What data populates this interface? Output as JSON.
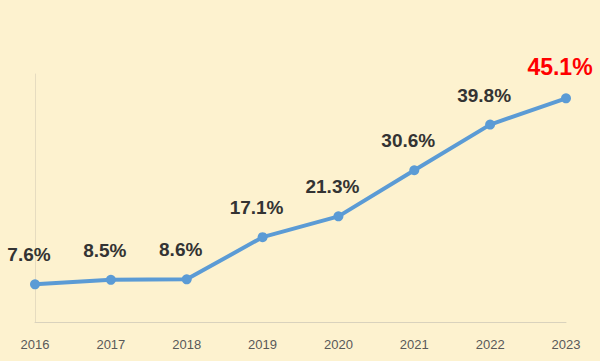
{
  "chart_data": {
    "type": "line",
    "categories": [
      "2016",
      "2017",
      "2018",
      "2019",
      "2020",
      "2021",
      "2022",
      "2023"
    ],
    "values": [
      7.6,
      8.5,
      8.6,
      17.1,
      21.3,
      30.6,
      39.8,
      45.1
    ],
    "value_labels": [
      "7.6%",
      "8.5%",
      "8.6%",
      "17.1%",
      "21.3%",
      "30.6%",
      "39.8%",
      "45.1%"
    ],
    "color": "#5b9bd5",
    "marker": "circle",
    "ylim": [
      0,
      50
    ],
    "grid": false,
    "data_labels": true,
    "tick_labels": "x"
  }
}
